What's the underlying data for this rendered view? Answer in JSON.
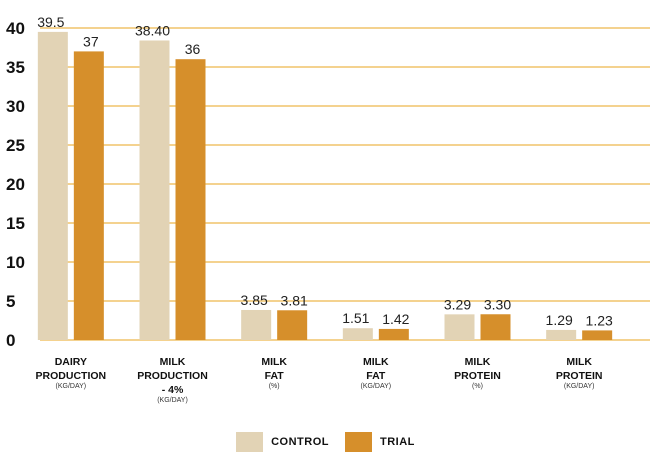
{
  "chart_data": {
    "type": "bar",
    "title": "",
    "xlabel": "",
    "ylabel": "",
    "ylim": [
      0,
      40
    ],
    "yticks": [
      0,
      5,
      10,
      15,
      20,
      25,
      30,
      35,
      40
    ],
    "grid": true,
    "legend_position": "bottom-center",
    "categories": [
      {
        "lines": [
          "DAIRY",
          "PRODUCTION"
        ],
        "unit": "(KG/DAY)"
      },
      {
        "lines": [
          "MILK",
          "PRODUCTION",
          "- 4%"
        ],
        "unit": "(KG/DAY)"
      },
      {
        "lines": [
          "MILK",
          "FAT"
        ],
        "unit": "(%)"
      },
      {
        "lines": [
          "MILK",
          "FAT"
        ],
        "unit": "(KG/DAY)"
      },
      {
        "lines": [
          "MILK",
          "PROTEIN"
        ],
        "unit": "(%)"
      },
      {
        "lines": [
          "MILK",
          "PROTEIN"
        ],
        "unit": "(KG/DAY)"
      }
    ],
    "series": [
      {
        "name": "CONTROL",
        "color": "#e2d3b5",
        "values": [
          39.5,
          38.4,
          3.85,
          1.51,
          3.29,
          1.29
        ],
        "labels": [
          "39.5",
          "38.40",
          "3.85",
          "1.51",
          "3.29",
          "1.29"
        ]
      },
      {
        "name": "TRIAL",
        "color": "#d68f2b",
        "values": [
          37,
          36,
          3.81,
          1.42,
          3.3,
          1.23
        ],
        "labels": [
          "37",
          "36",
          "3.81",
          "1.42",
          "3.30",
          "1.23"
        ]
      }
    ],
    "grid_color": "#f1c46a"
  }
}
